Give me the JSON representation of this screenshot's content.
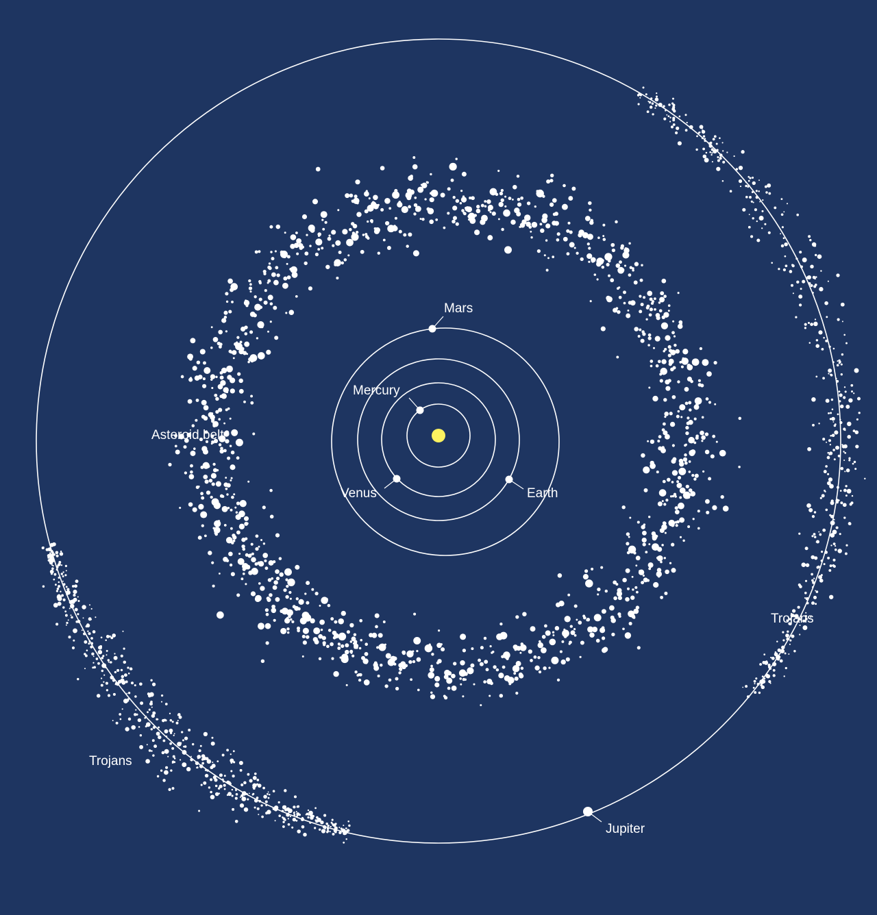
{
  "diagram": {
    "colors": {
      "background": "#1e3561",
      "sun": "#fcf260",
      "lines": "#ffffff",
      "asteroids": "#ffffff"
    },
    "labels": {
      "mars": "Mars",
      "mercury": "Mercury",
      "venus": "Venus",
      "earth": "Earth",
      "asteroid_belt": "Asteroid belt",
      "trojans_right": "Trojans",
      "trojans_left": "Trojans",
      "jupiter": "Jupiter"
    }
  }
}
